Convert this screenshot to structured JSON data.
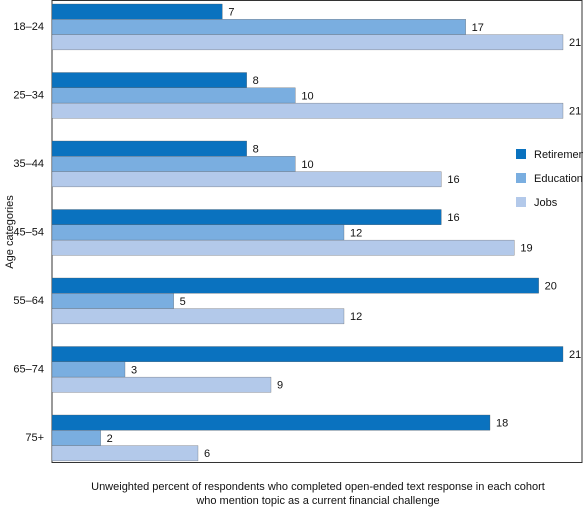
{
  "chart_data": {
    "type": "hbar-grouped",
    "y_label": "Age categories",
    "x_label": [
      "Unweighted percent of respondents who completed open-ended text response in each cohort",
      "who mention topic as a current financial challenge"
    ],
    "categories": [
      "18–24",
      "25–34",
      "35–44",
      "45–54",
      "55–64",
      "65–74",
      "75+"
    ],
    "series": [
      {
        "name": "Retirement",
        "color": "#0a72bf",
        "values": [
          7,
          8,
          8,
          16,
          20,
          21,
          18
        ]
      },
      {
        "name": "Education",
        "color": "#7aaee0",
        "values": [
          17,
          10,
          10,
          12,
          5,
          3,
          2
        ]
      },
      {
        "name": "Jobs",
        "color": "#b3c9ea",
        "values": [
          21,
          21,
          16,
          19,
          12,
          9,
          6
        ]
      }
    ],
    "legend": "right"
  }
}
